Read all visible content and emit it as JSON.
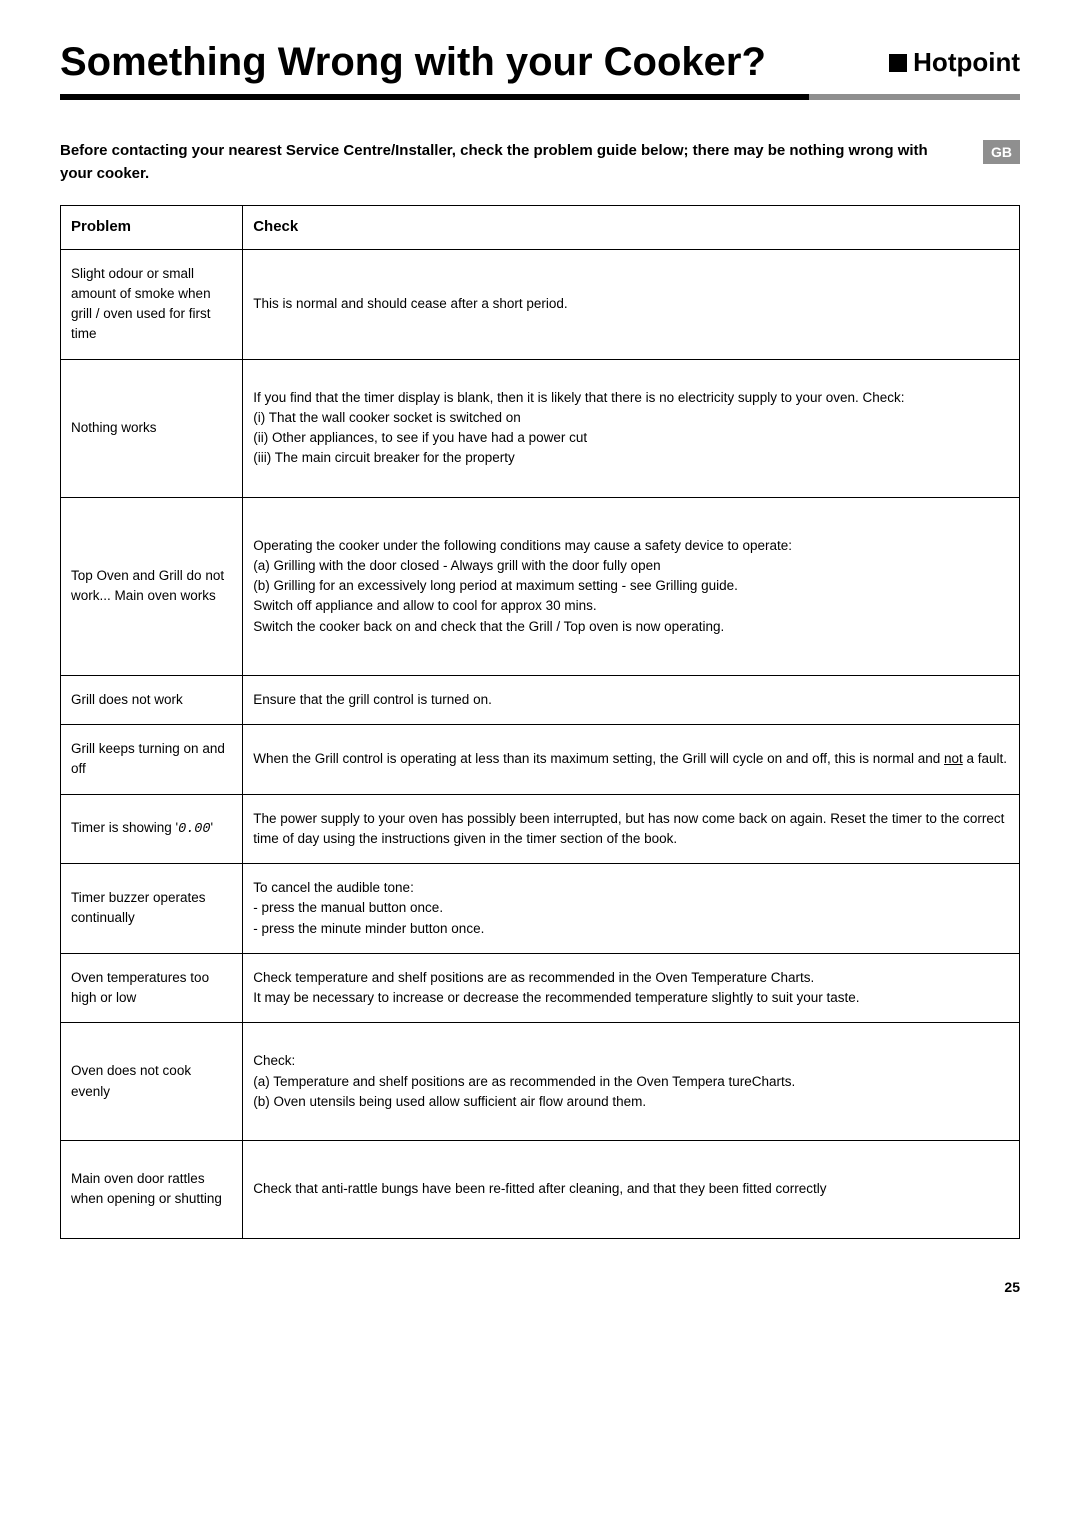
{
  "title": "Something Wrong with your Cooker?",
  "brand": "Hotpoint",
  "intro": "Before contacting your nearest Service Centre/Installer, check the problem guide below; there may be nothing wrong with your cooker.",
  "region_tag": "GB",
  "table": {
    "headers": {
      "problem": "Problem",
      "check": "Check"
    },
    "col_widths": {
      "problem": "19%",
      "check": "81%"
    },
    "border_color": "#000000",
    "font_size_pt": 10,
    "rows": [
      {
        "problem": "Slight odour or small amount of smoke when grill / oven used for first time",
        "check": "This is normal and should cease after a short period."
      },
      {
        "problem": "Nothing works",
        "check": "If you find that the timer display is blank, then it is likely that there is no electricity supply to your oven. Check:\n(i) That the  wall cooker socket  is switched on\n(ii) Other appliances, to see if you have had a power cut\n(iii) The main circuit breaker for the property",
        "extra_padding": "tall"
      },
      {
        "problem": "Top Oven and Grill do not work... Main oven works",
        "check": "Operating the cooker under the following conditions may cause a safety device to operate:\n(a) Grilling with the door closed - Always grill with the door fully open\n(b) Grilling for an excessively long period at maximum setting - see Grilling guide.\nSwitch off appliance and allow to cool for approx 30 mins.\nSwitch the cooker back on and check that the Grill / Top oven is now operating.",
        "extra_padding": "taller"
      },
      {
        "problem": "Grill does not work",
        "check": "Ensure that the grill control is turned on."
      },
      {
        "problem": "Grill keeps turning on and off",
        "check_html": "When the Grill control is operating at less than its maximum setting, the Grill will cycle on and off, this is normal and <span class=\"u\">not</span> a fault."
      },
      {
        "problem_html": "Timer is showing '<span class=\"digit\">0.00</span>'",
        "check": "The power supply to your oven has possibly been interrupted, but has now come back on again. Reset the timer to the correct time of day using the instructions given in the timer section of the book."
      },
      {
        "problem": "Timer buzzer operates continually",
        "check": "To cancel the audible tone:\n- press the manual button once.\n- press the minute minder button once."
      },
      {
        "problem": "Oven temperatures too high or low",
        "check": "Check temperature and shelf positions are as recommended in the Oven Temperature Charts.\nIt may be necessary to increase or decrease the recommended temperature slightly to suit your taste."
      },
      {
        "problem": "Oven does not cook evenly",
        "check": "Check:\n(a)  Temperature and shelf positions are as recommended in the  Oven Tempera tureCharts.\n(b)  Oven utensils being used allow sufficient air flow around them.",
        "extra_padding": "tall"
      },
      {
        "problem": "Main oven door rattles when opening or shutting",
        "check": "Check that anti-rattle bungs have been re-fitted after cleaning, and that they been fitted correctly",
        "extra_padding": "tall"
      }
    ]
  },
  "page_number": "25",
  "colors": {
    "text": "#000000",
    "background": "#ffffff",
    "rule_gray": "#8f8f8f",
    "rule_black": "#000000",
    "tag_bg": "#8f8f8f",
    "tag_fg": "#ffffff"
  },
  "typography": {
    "title_fontsize": 40,
    "title_weight": 700,
    "brand_fontsize": 26,
    "body_fontsize": 13.5,
    "header_fontsize": 15
  }
}
